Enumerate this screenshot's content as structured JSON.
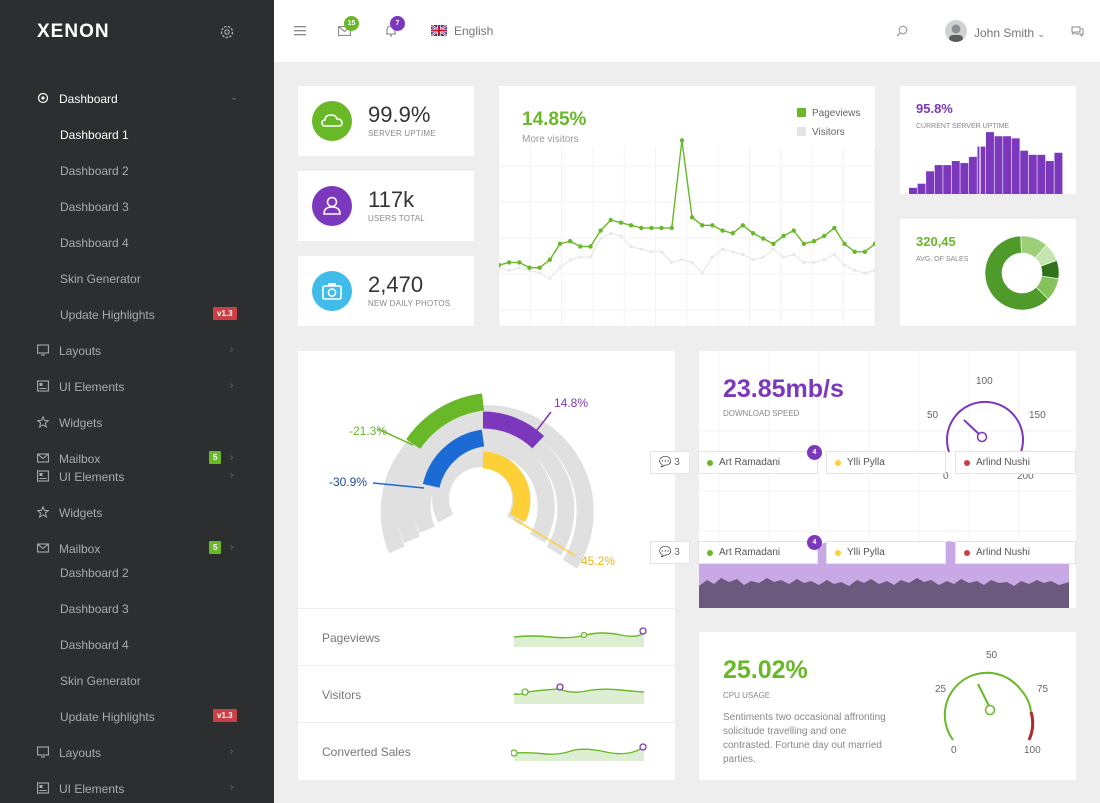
{
  "brand": {
    "logo": "XENON"
  },
  "sidebar": {
    "items": [
      {
        "label": "Dashboard",
        "icon": "dashboard-icon",
        "top": 0,
        "active": true,
        "arrow": "⌄"
      },
      {
        "label": "Dashboard 1",
        "sub": true,
        "active": true
      },
      {
        "label": "Dashboard 2",
        "sub": true
      },
      {
        "label": "Dashboard 3",
        "sub": true
      },
      {
        "label": "Dashboard 4",
        "sub": true
      },
      {
        "label": "Skin Generator",
        "sub": true
      },
      {
        "label": "Update Highlights",
        "sub": true,
        "badge": "v1.3",
        "badge_color": "#cc3f44"
      },
      {
        "label": "Layouts",
        "icon": "layouts-icon",
        "arrow": "›"
      },
      {
        "label": "UI Elements",
        "icon": "ui-elements-icon",
        "arrow": "›"
      },
      {
        "label": "Widgets",
        "icon": "star-icon"
      },
      {
        "label": "Mailbox",
        "icon": "mailbox-icon",
        "arrow": "›",
        "badge": "5",
        "badge_color": "#68b828"
      },
      {
        "label": "UI Elements",
        "icon": "ui-elements-icon",
        "arrow": "›"
      },
      {
        "label": "Widgets",
        "icon": "star-icon"
      },
      {
        "label": "Mailbox",
        "icon": "mailbox-icon",
        "arrow": "›",
        "badge": "5",
        "badge_color": "#68b828"
      },
      {
        "label": "Dashboard 2",
        "sub": true
      },
      {
        "label": "Dashboard 3",
        "sub": true
      },
      {
        "label": "Dashboard 4",
        "sub": true
      },
      {
        "label": "Skin Generator",
        "sub": true
      },
      {
        "label": "Update Highlights",
        "sub": true,
        "badge": "v1.3",
        "badge_color": "#cc3f44"
      },
      {
        "label": "Layouts",
        "icon": "layouts-icon",
        "arrow": "›"
      },
      {
        "label": "UI Elements",
        "icon": "ui-elements-icon",
        "arrow": "›"
      }
    ]
  },
  "header": {
    "mail_count": "15",
    "notif_count": "7",
    "language": "English",
    "user_name": "John Smith"
  },
  "stats": [
    {
      "value": "99.9%",
      "label": "SERVER UPTIME",
      "color": "#68b828",
      "icon": "cloud-icon"
    },
    {
      "value": "117k",
      "label": "USERS TOTAL",
      "color": "#7c38bc",
      "icon": "user-icon"
    },
    {
      "value": "2,470",
      "label": "NEW DAILY PHOTOS",
      "color": "#40bbea",
      "icon": "camera-icon"
    }
  ],
  "visitors": {
    "percent": "14.85%",
    "label": "More visitors",
    "legend": [
      "Pageviews",
      "Visitors"
    ]
  },
  "uptime": {
    "value": "95.8%",
    "label": "CURRENT SERVER UPTIME"
  },
  "sales": {
    "value": "320,45",
    "label": "AVG. OF SALES"
  },
  "radial": {
    "labels": [
      "-21.3%",
      "14.8%",
      "-30.9%",
      "45.2%"
    ]
  },
  "mini_rows": [
    "Pageviews",
    "Visitors",
    "Converted Sales"
  ],
  "download": {
    "value": "23.85mb/s",
    "label": "DOWNLOAD SPEED",
    "gauge_ticks": [
      "100",
      "50",
      "150",
      "0",
      "200"
    ]
  },
  "chat": {
    "count": "3",
    "badge": "4",
    "users": [
      {
        "name": "Art Ramadani",
        "color": "#68b828"
      },
      {
        "name": "Ylli Pylla",
        "color": "#fcd036"
      },
      {
        "name": "Arlind Nushi",
        "color": "#cc3f44"
      }
    ]
  },
  "cpu": {
    "value": "25.02%",
    "label": "CPU USAGE",
    "description": "Sentiments two occasional affronting solicitude travelling and one contrasted. Fortune day out married parties.",
    "gauge_ticks": [
      "50",
      "25",
      "75",
      "0",
      "100"
    ]
  },
  "chart_data": [
    {
      "type": "line",
      "series": [
        {
          "name": "Pageviews",
          "values": [
            23,
            24,
            24,
            22,
            22,
            25,
            31,
            32,
            30,
            30,
            36,
            40,
            39,
            38,
            37,
            37,
            37,
            37,
            70,
            41,
            38,
            38,
            36,
            35,
            38,
            35,
            33,
            31,
            34,
            36,
            31,
            32,
            34,
            37,
            31,
            28,
            28,
            31
          ]
        },
        {
          "name": "Visitors",
          "values": [
            22,
            21,
            22,
            21,
            20,
            18,
            22,
            25,
            26,
            26,
            33,
            35,
            34,
            30,
            29,
            28,
            28,
            24,
            25,
            24,
            20,
            26,
            29,
            28,
            27,
            25,
            26,
            29,
            26,
            27,
            24,
            24,
            25,
            27,
            23,
            21,
            20,
            21
          ]
        }
      ]
    },
    {
      "type": "bar",
      "values": [
        3,
        5,
        11,
        14,
        14,
        16,
        15,
        18,
        23,
        30,
        28,
        28,
        27,
        21,
        19,
        19,
        16,
        20
      ]
    },
    {
      "type": "pie",
      "values": [
        62,
        12,
        8,
        8,
        10
      ]
    }
  ]
}
